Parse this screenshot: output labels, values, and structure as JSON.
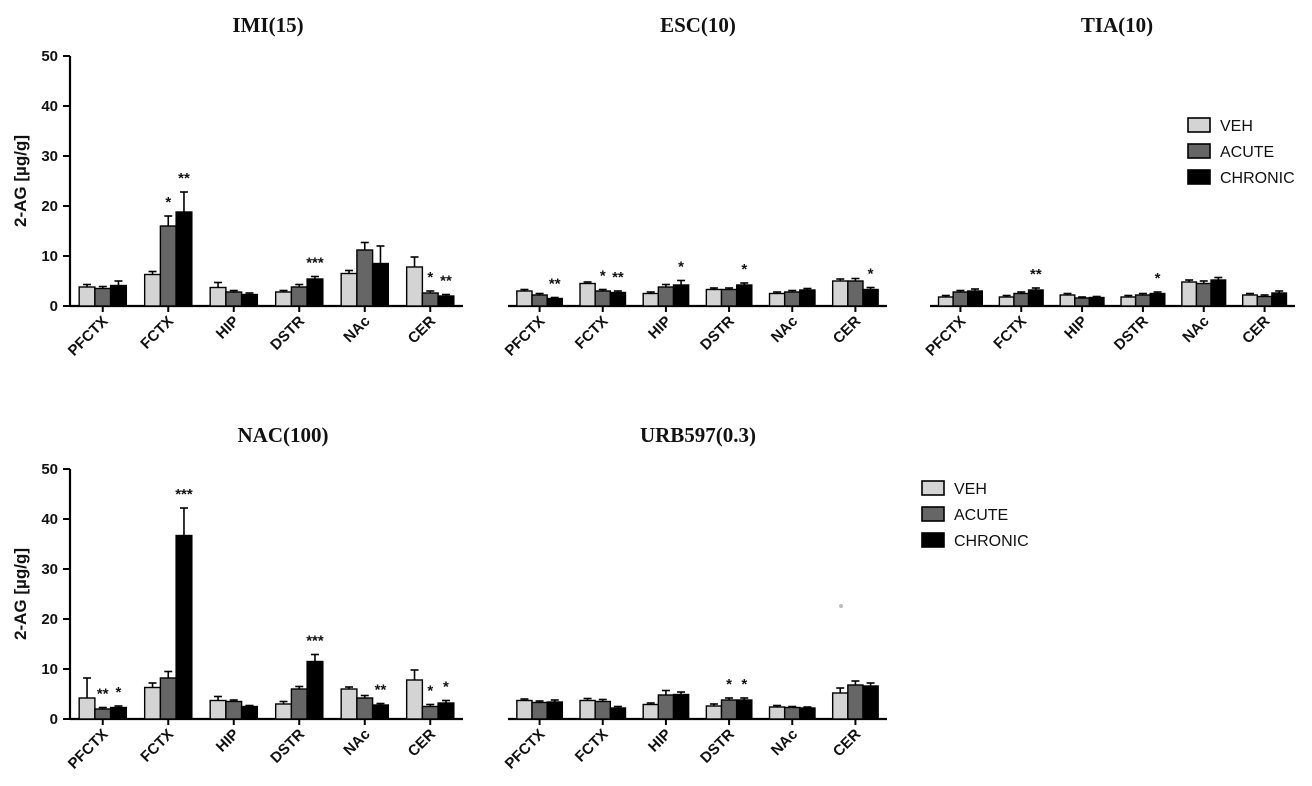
{
  "colors": {
    "VEH": "#d4d4d4",
    "ACUTE": "#666666",
    "CHRONIC": "#000000"
  },
  "legend": [
    "VEH",
    "ACUTE",
    "CHRONIC"
  ],
  "chart_data": [
    {
      "type": "bar",
      "title": "IMI(15)",
      "ylabel": "2-AG [µg/g]",
      "ylim": [
        0,
        50
      ],
      "yticks": [
        0,
        10,
        20,
        30,
        40,
        50
      ],
      "categories": [
        "PFCTX",
        "FCTX",
        "HIP",
        "DSTR",
        "NAc",
        "CER"
      ],
      "series": [
        {
          "name": "VEH",
          "values": [
            3.8,
            6.3,
            3.7,
            2.8,
            6.5,
            7.8
          ],
          "errors": [
            0.5,
            0.6,
            1.0,
            0.3,
            0.6,
            2.0
          ]
        },
        {
          "name": "ACUTE",
          "values": [
            3.5,
            16.0,
            2.8,
            3.8,
            11.2,
            2.6
          ],
          "errors": [
            0.4,
            2.0,
            0.3,
            0.5,
            1.5,
            0.4
          ]
        },
        {
          "name": "CHRONIC",
          "values": [
            4.1,
            18.8,
            2.3,
            5.4,
            8.5,
            2.0
          ],
          "errors": [
            0.9,
            4.0,
            0.3,
            0.5,
            3.5,
            0.3
          ]
        }
      ],
      "annotations": [
        {
          "category": "FCTX",
          "series": "ACUTE",
          "text": "*"
        },
        {
          "category": "FCTX",
          "series": "CHRONIC",
          "text": "**"
        },
        {
          "category": "DSTR",
          "series": "CHRONIC",
          "text": "***"
        },
        {
          "category": "CER",
          "series": "ACUTE",
          "text": "*"
        },
        {
          "category": "CER",
          "series": "CHRONIC",
          "text": "**"
        }
      ]
    },
    {
      "type": "bar",
      "title": "ESC(10)",
      "ylim": [
        0,
        50
      ],
      "categories": [
        "PFCTX",
        "FCTX",
        "HIP",
        "DSTR",
        "NAc",
        "CER"
      ],
      "series": [
        {
          "name": "VEH",
          "values": [
            3.0,
            4.5,
            2.5,
            3.3,
            2.5,
            5.0
          ],
          "errors": [
            0.3,
            0.3,
            0.3,
            0.3,
            0.3,
            0.4
          ]
        },
        {
          "name": "ACUTE",
          "values": [
            2.2,
            3.0,
            3.8,
            3.3,
            2.8,
            5.0
          ],
          "errors": [
            0.3,
            0.3,
            0.5,
            0.3,
            0.3,
            0.5
          ]
        },
        {
          "name": "CHRONIC",
          "values": [
            1.5,
            2.7,
            4.2,
            4.2,
            3.2,
            3.3
          ],
          "errors": [
            0.2,
            0.3,
            0.9,
            0.4,
            0.3,
            0.4
          ]
        }
      ],
      "annotations": [
        {
          "category": "PFCTX",
          "series": "CHRONIC",
          "text": "**"
        },
        {
          "category": "FCTX",
          "series": "ACUTE",
          "text": "*"
        },
        {
          "category": "FCTX",
          "series": "CHRONIC",
          "text": "**"
        },
        {
          "category": "HIP",
          "series": "CHRONIC",
          "text": "*"
        },
        {
          "category": "DSTR",
          "series": "CHRONIC",
          "text": "*"
        },
        {
          "category": "CER",
          "series": "CHRONIC",
          "text": "*"
        }
      ]
    },
    {
      "type": "bar",
      "title": "TIA(10)",
      "ylim": [
        0,
        50
      ],
      "categories": [
        "PFCTX",
        "FCTX",
        "HIP",
        "DSTR",
        "NAc",
        "CER"
      ],
      "series": [
        {
          "name": "VEH",
          "values": [
            1.8,
            1.8,
            2.2,
            1.8,
            4.8,
            2.2
          ],
          "errors": [
            0.3,
            0.3,
            0.3,
            0.3,
            0.4,
            0.3
          ]
        },
        {
          "name": "ACUTE",
          "values": [
            2.8,
            2.5,
            1.6,
            2.2,
            4.5,
            1.9
          ],
          "errors": [
            0.3,
            0.3,
            0.2,
            0.3,
            0.5,
            0.3
          ]
        },
        {
          "name": "CHRONIC",
          "values": [
            3.0,
            3.2,
            1.7,
            2.5,
            5.2,
            2.6
          ],
          "errors": [
            0.4,
            0.4,
            0.2,
            0.3,
            0.5,
            0.4
          ]
        }
      ],
      "annotations": [
        {
          "category": "FCTX",
          "series": "CHRONIC",
          "text": "**"
        },
        {
          "category": "DSTR",
          "series": "CHRONIC",
          "text": "*"
        }
      ]
    },
    {
      "type": "bar",
      "title": "NAC(100)",
      "ylabel": "2-AG [µg/g]",
      "ylim": [
        0,
        50
      ],
      "yticks": [
        0,
        10,
        20,
        30,
        40,
        50
      ],
      "categories": [
        "PFCTX",
        "FCTX",
        "HIP",
        "DSTR",
        "NAc",
        "CER"
      ],
      "series": [
        {
          "name": "VEH",
          "values": [
            4.2,
            6.3,
            3.7,
            3.0,
            6.0,
            7.8
          ],
          "errors": [
            4.0,
            0.9,
            0.8,
            0.5,
            0.4,
            2.0
          ]
        },
        {
          "name": "ACUTE",
          "values": [
            2.0,
            8.2,
            3.5,
            6.0,
            4.2,
            2.5
          ],
          "errors": [
            0.3,
            1.3,
            0.3,
            0.5,
            0.5,
            0.4
          ]
        },
        {
          "name": "CHRONIC",
          "values": [
            2.3,
            36.7,
            2.5,
            11.5,
            2.8,
            3.2
          ],
          "errors": [
            0.3,
            5.5,
            0.2,
            1.4,
            0.3,
            0.5
          ]
        }
      ],
      "annotations": [
        {
          "category": "PFCTX",
          "series": "ACUTE",
          "text": "**"
        },
        {
          "category": "PFCTX",
          "series": "CHRONIC",
          "text": "*"
        },
        {
          "category": "FCTX",
          "series": "CHRONIC",
          "text": "***"
        },
        {
          "category": "DSTR",
          "series": "CHRONIC",
          "text": "***"
        },
        {
          "category": "NAc",
          "series": "CHRONIC",
          "text": "**"
        },
        {
          "category": "CER",
          "series": "ACUTE",
          "text": "*"
        },
        {
          "category": "CER",
          "series": "CHRONIC",
          "text": "*"
        }
      ]
    },
    {
      "type": "bar",
      "title": "URB597(0.3)",
      "ylim": [
        0,
        50
      ],
      "categories": [
        "PFCTX",
        "FCTX",
        "HIP",
        "DSTR",
        "NAc",
        "CER"
      ],
      "series": [
        {
          "name": "VEH",
          "values": [
            3.7,
            3.7,
            2.9,
            2.6,
            2.4,
            5.2
          ],
          "errors": [
            0.3,
            0.4,
            0.3,
            0.4,
            0.3,
            1.0
          ]
        },
        {
          "name": "ACUTE",
          "values": [
            3.3,
            3.5,
            4.8,
            3.8,
            2.3,
            6.8
          ],
          "errors": [
            0.3,
            0.4,
            0.9,
            0.4,
            0.2,
            0.8
          ]
        },
        {
          "name": "CHRONIC",
          "values": [
            3.4,
            2.2,
            4.9,
            3.8,
            2.2,
            6.6
          ],
          "errors": [
            0.4,
            0.3,
            0.5,
            0.4,
            0.2,
            0.6
          ]
        }
      ],
      "annotations": [
        {
          "category": "DSTR",
          "series": "ACUTE",
          "text": "*"
        },
        {
          "category": "DSTR",
          "series": "CHRONIC",
          "text": "*"
        }
      ]
    }
  ]
}
